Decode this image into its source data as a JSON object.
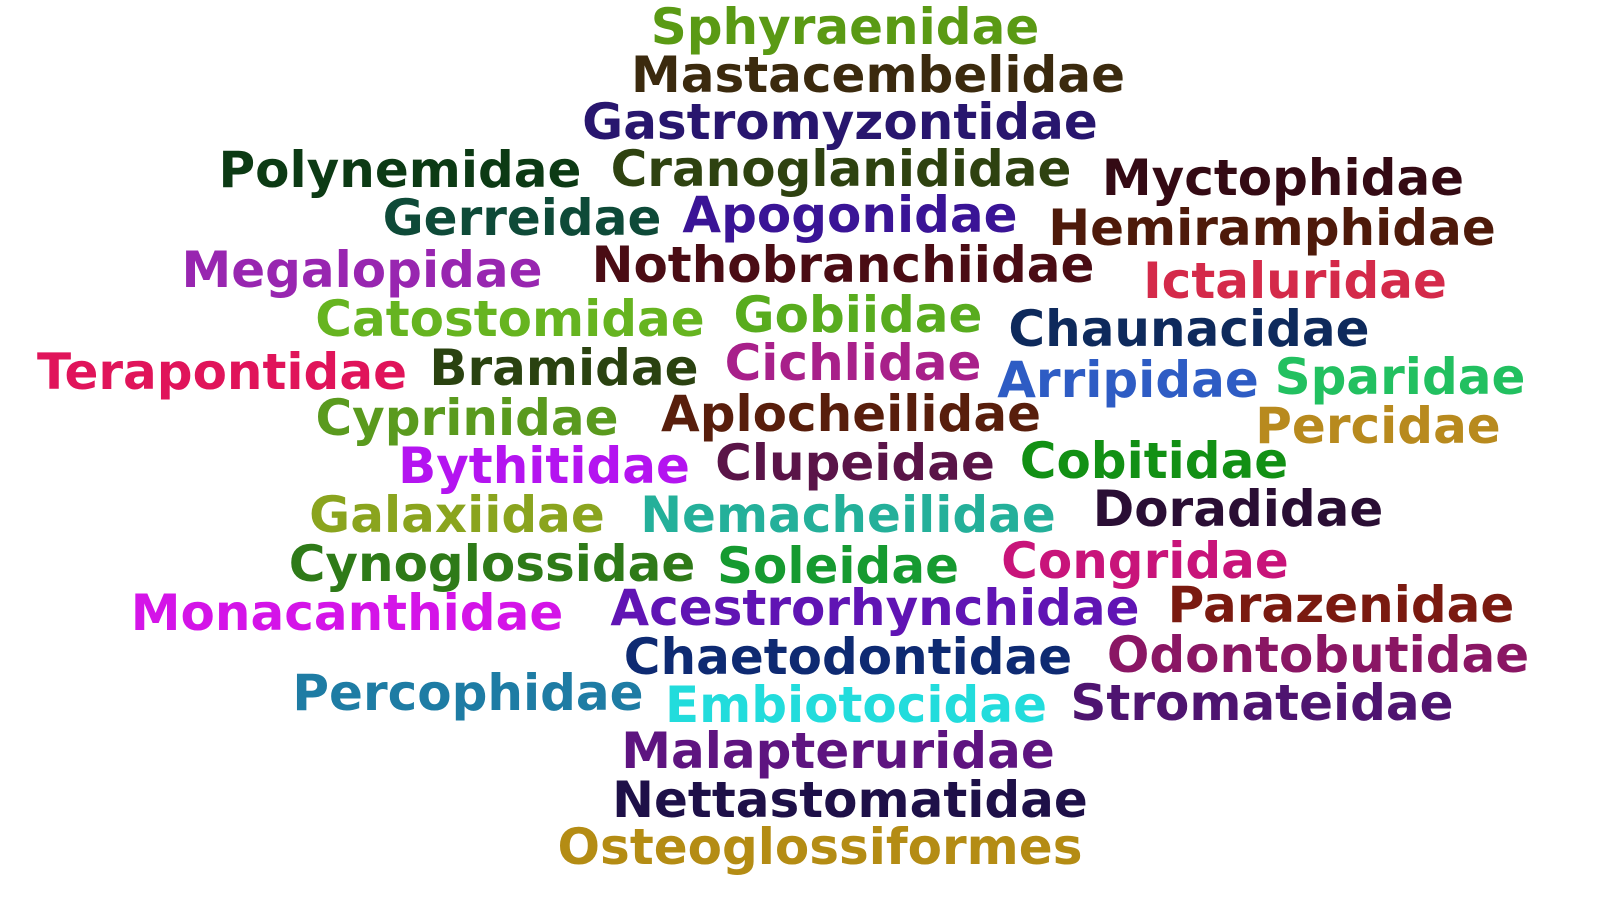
{
  "words": [
    {
      "text": "Sphyraenidae",
      "color": "#5a9a14"
    },
    {
      "text": "Mastacembelidae",
      "color": "#3b2a0e"
    },
    {
      "text": "Gastromyzontidae",
      "color": "#28166e"
    },
    {
      "text": "Polynemidae",
      "color": "#0c3a14"
    },
    {
      "text": "Cranoglanididae",
      "color": "#2e4210"
    },
    {
      "text": "Myctophidae",
      "color": "#340a14"
    },
    {
      "text": "Gerreidae",
      "color": "#0e4a38"
    },
    {
      "text": "Apogonidae",
      "color": "#3a1496"
    },
    {
      "text": "Hemiramphidae",
      "color": "#4e1a0a"
    },
    {
      "text": "Megalopidae",
      "color": "#9826b0"
    },
    {
      "text": "Nothobranchiidae",
      "color": "#4a0c14"
    },
    {
      "text": "Ictaluridae",
      "color": "#d42a4a"
    },
    {
      "text": "Catostomidae",
      "color": "#66b420"
    },
    {
      "text": "Gobiidae",
      "color": "#58ac1e"
    },
    {
      "text": "Chaunacidae",
      "color": "#0e2a5c"
    },
    {
      "text": "Terapontidae",
      "color": "#e0145a"
    },
    {
      "text": "Bramidae",
      "color": "#2a4210"
    },
    {
      "text": "Cichlidae",
      "color": "#a8208a"
    },
    {
      "text": "Arripidae",
      "color": "#2e5cc4"
    },
    {
      "text": "Sparidae",
      "color": "#22c060"
    },
    {
      "text": "Cyprinidae",
      "color": "#5a9a1e"
    },
    {
      "text": "Aplocheilidae",
      "color": "#581e0c"
    },
    {
      "text": "Percidae",
      "color": "#b88a1e"
    },
    {
      "text": "Bythitidae",
      "color": "#b414f0"
    },
    {
      "text": "Clupeidae",
      "color": "#5a1448"
    },
    {
      "text": "Cobitidae",
      "color": "#129014"
    },
    {
      "text": "Galaxiidae",
      "color": "#8aa41e"
    },
    {
      "text": "Nemacheilidae",
      "color": "#24b09a"
    },
    {
      "text": "Doradidae",
      "color": "#2a0e34"
    },
    {
      "text": "Cynoglossidae",
      "color": "#2e7a18"
    },
    {
      "text": "Soleidae",
      "color": "#169a30"
    },
    {
      "text": "Congridae",
      "color": "#c8147a"
    },
    {
      "text": "Monacanthidae",
      "color": "#d414e8"
    },
    {
      "text": "Acestrorhynchidae",
      "color": "#6014b4"
    },
    {
      "text": "Parazenidae",
      "color": "#7a1a10"
    },
    {
      "text": "Chaetodontidae",
      "color": "#0e2a72"
    },
    {
      "text": "Odontobutidae",
      "color": "#8a1664"
    },
    {
      "text": "Percophidae",
      "color": "#1e7ca4"
    },
    {
      "text": "Embiotocidae",
      "color": "#22dcdc"
    },
    {
      "text": "Stromateidae",
      "color": "#4e1470"
    },
    {
      "text": "Malapteruridae",
      "color": "#5e1480"
    },
    {
      "text": "Nettastomatidae",
      "color": "#1e1048"
    },
    {
      "text": "Osteoglossiformes",
      "color": "#b48c14"
    }
  ]
}
